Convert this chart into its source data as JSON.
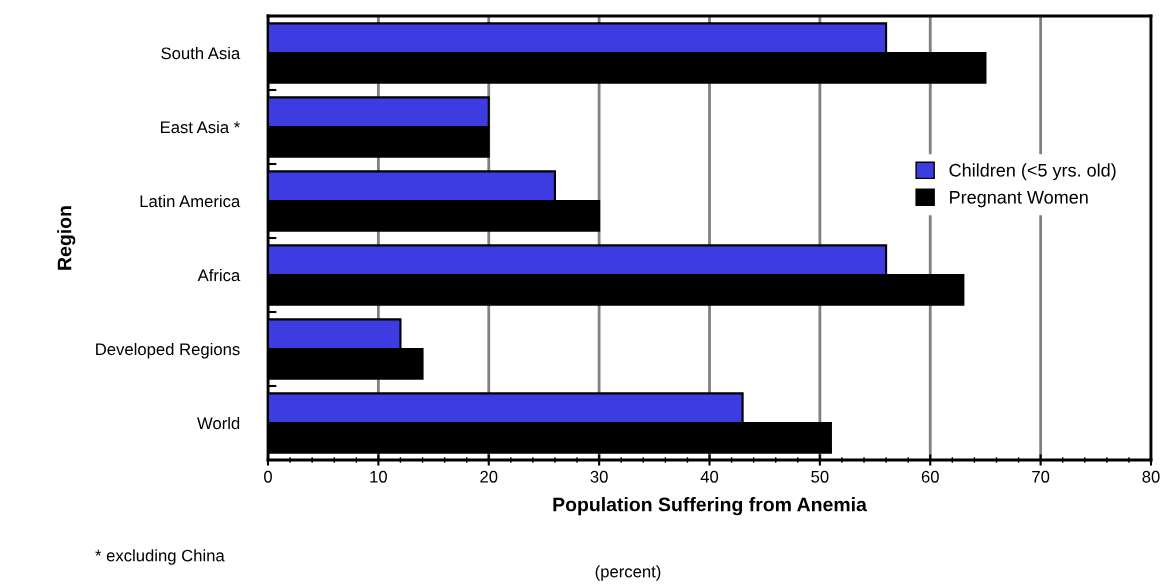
{
  "chart_data": {
    "type": "bar",
    "orientation": "horizontal",
    "ylabel": "Region",
    "xlabel": "Population Suffering from Anemia",
    "categories": [
      "South Asia",
      "East Asia *",
      "Latin America",
      "Africa",
      "Developed Regions",
      "World"
    ],
    "series": [
      {
        "name": "Children (<5 yrs. old)",
        "color": "#3c3ce0",
        "values": [
          56,
          20,
          26,
          56,
          12,
          43
        ]
      },
      {
        "name": "Pregnant Women",
        "color": "#000000",
        "values": [
          65,
          20,
          30,
          63,
          14,
          51
        ]
      }
    ],
    "xlim": [
      0,
      80
    ],
    "xticks": [
      0,
      10,
      20,
      30,
      40,
      50,
      60,
      70,
      80
    ],
    "grid": "x",
    "legend": "right",
    "annotations": [
      "(percent)",
      "* excluding China"
    ]
  }
}
